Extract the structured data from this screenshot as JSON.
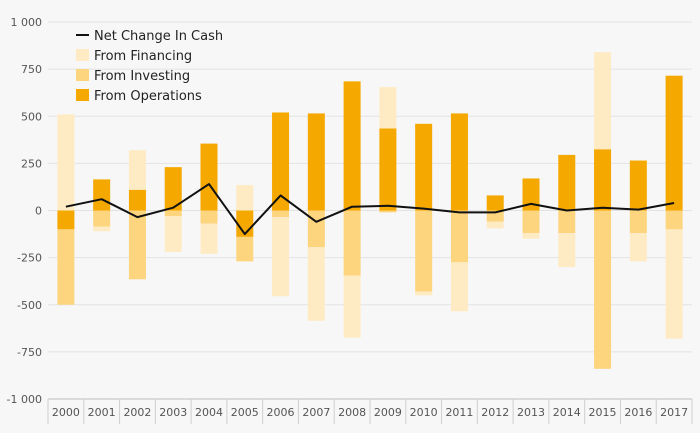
{
  "chart_data": {
    "type": "bar",
    "stacked": true,
    "categories": [
      "2000",
      "2001",
      "2002",
      "2003",
      "2004",
      "2005",
      "2006",
      "2007",
      "2008",
      "2009",
      "2010",
      "2011",
      "2012",
      "2013",
      "2014",
      "2015",
      "2016",
      "2017"
    ],
    "series": [
      {
        "name": "From Operations",
        "color": "#f5a800",
        "values": [
          -100,
          165,
          110,
          230,
          355,
          -140,
          520,
          515,
          685,
          435,
          460,
          515,
          80,
          170,
          295,
          325,
          265,
          715
        ]
      },
      {
        "name": "From Investing",
        "color": "#fdd57e",
        "values": [
          -400,
          -85,
          -365,
          -30,
          -70,
          -130,
          -35,
          -195,
          -345,
          -10,
          -430,
          -275,
          -60,
          -120,
          -120,
          -840,
          -120,
          -100
        ]
      },
      {
        "name": "From Financing",
        "color": "#feebc4",
        "values": [
          510,
          -25,
          210,
          -190,
          -160,
          135,
          -420,
          -390,
          -330,
          220,
          -20,
          -260,
          -35,
          -30,
          -180,
          515,
          -150,
          -580
        ]
      }
    ],
    "line": {
      "name": "Net Change In Cash",
      "color": "#111111",
      "values": [
        20,
        60,
        -35,
        15,
        140,
        -125,
        80,
        -60,
        20,
        25,
        10,
        -10,
        -10,
        35,
        0,
        15,
        5,
        40
      ]
    },
    "ylim": [
      -1000,
      1000
    ],
    "yticks": [
      1000,
      750,
      500,
      250,
      0,
      -250,
      -500,
      -750,
      -1000
    ],
    "ytick_labels": [
      "1 000",
      "750",
      "500",
      "250",
      "0",
      "-250",
      "-500",
      "-750",
      "-1 000"
    ],
    "grid": true,
    "legend": {
      "position": "top-left",
      "entries": [
        "Net Change In Cash",
        "From Financing",
        "From Investing",
        "From Operations"
      ]
    },
    "title": "",
    "xlabel": "",
    "ylabel": ""
  }
}
